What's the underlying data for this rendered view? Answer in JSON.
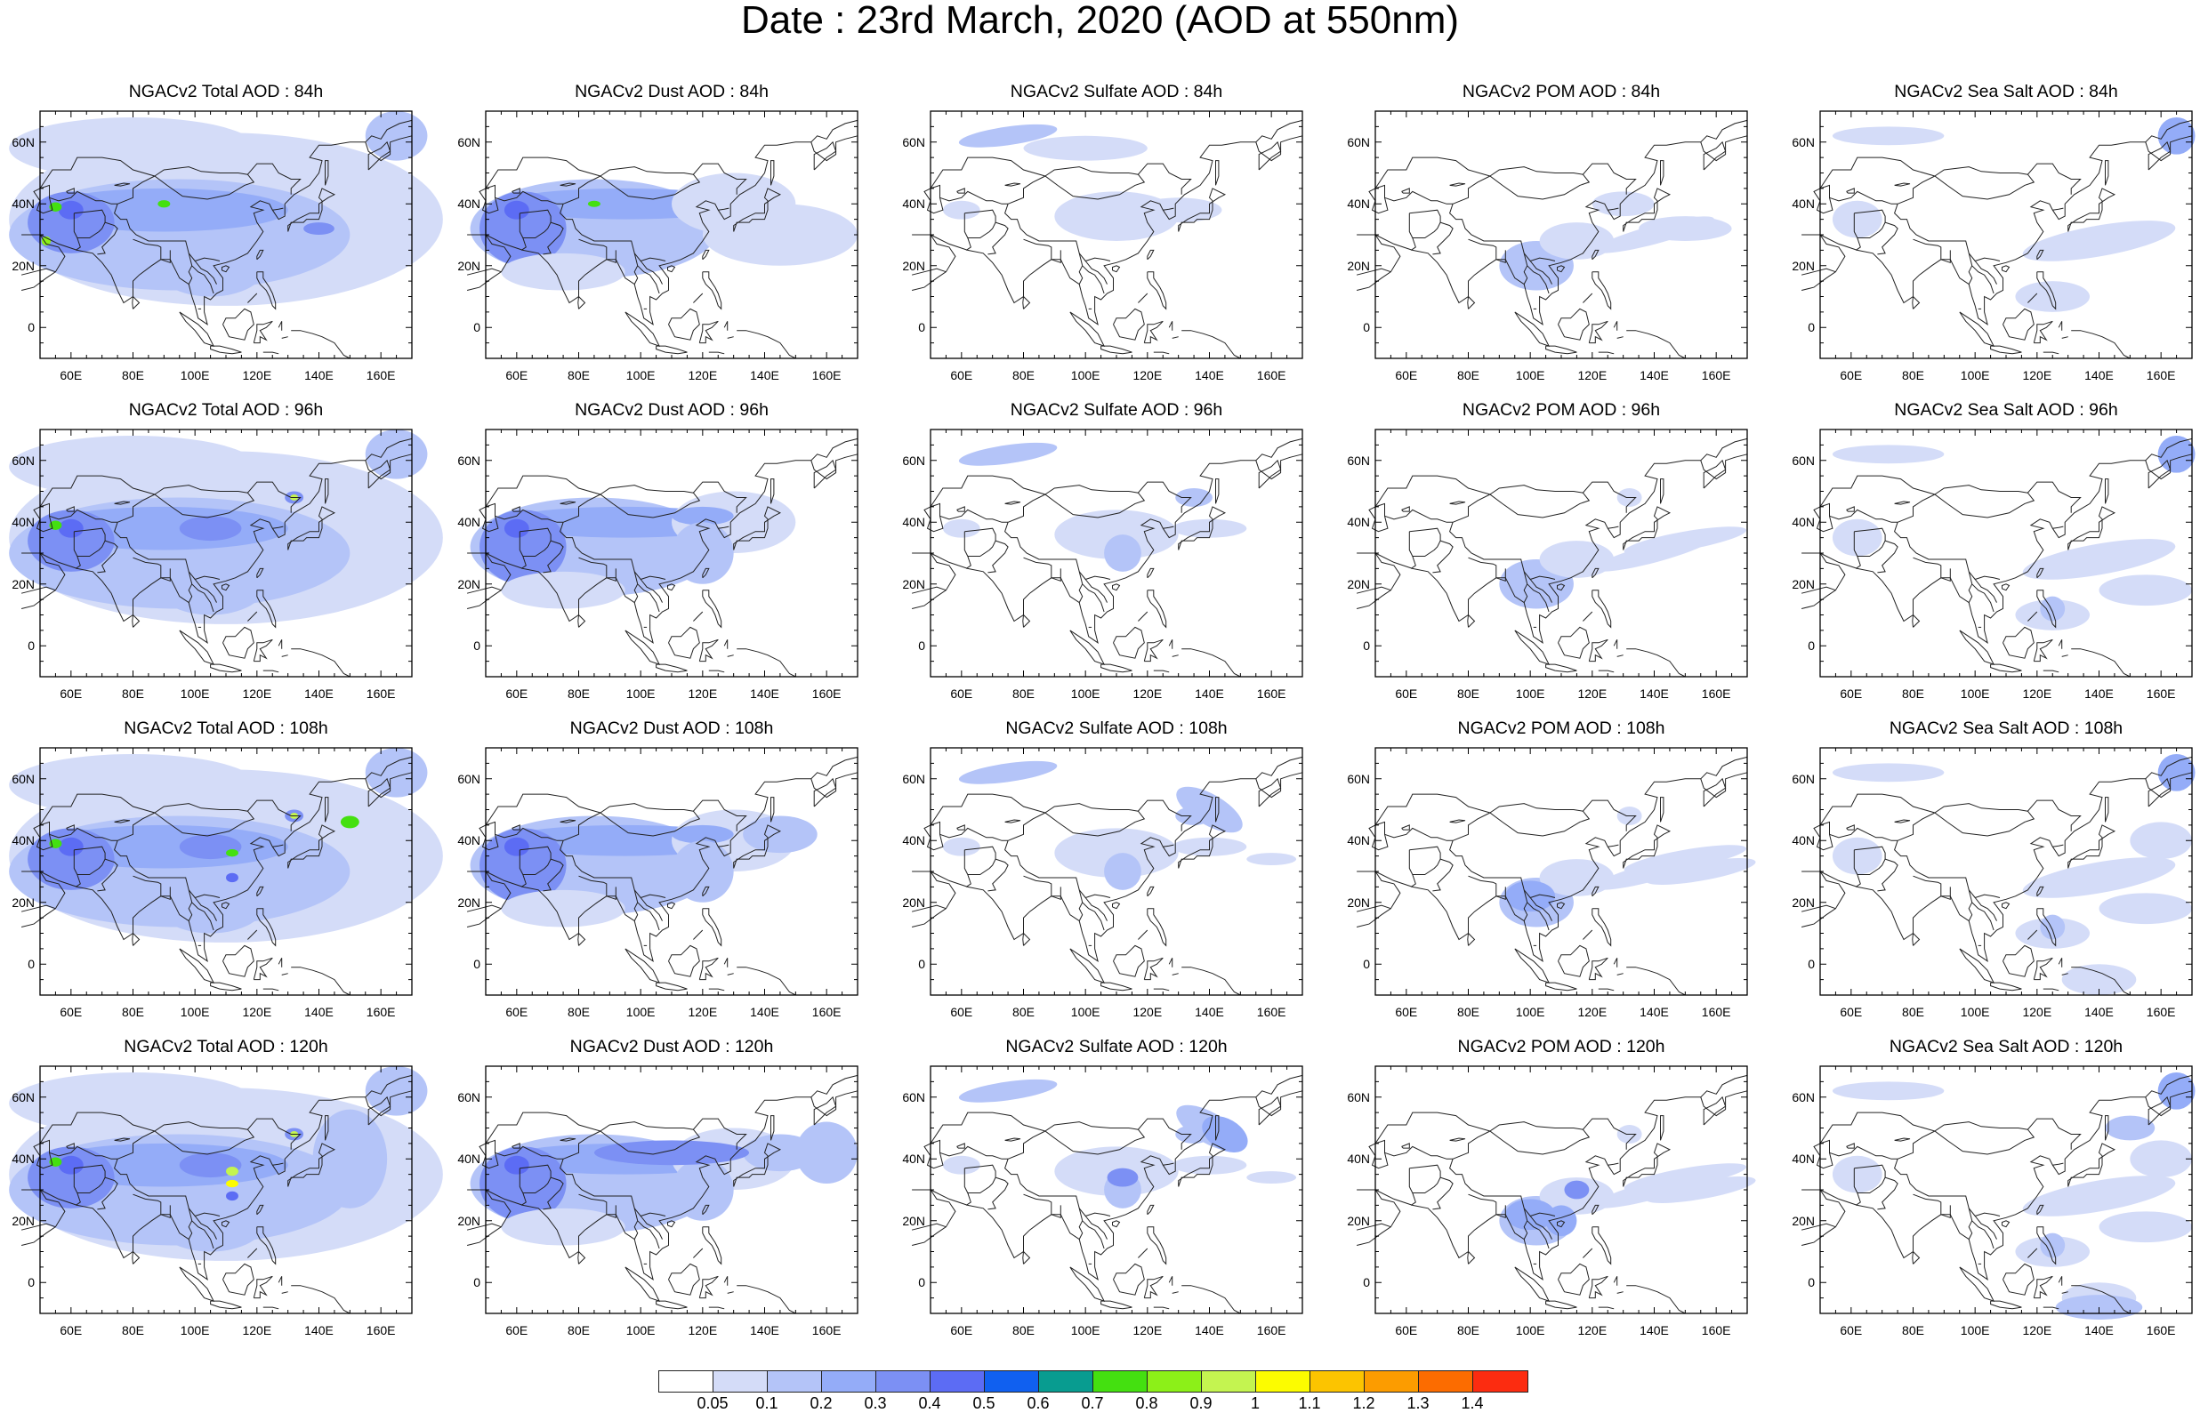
{
  "title": "Date : 23rd March, 2020 (AOD at 550nm)",
  "lat_ticks": [
    "60N",
    "40N",
    "20N",
    "0"
  ],
  "lon_ticks": [
    "60E",
    "80E",
    "100E",
    "120E",
    "140E",
    "160E"
  ],
  "panels": [
    {
      "title": "NGACv2 Total AOD : 84h",
      "species": "total",
      "forecast_hour": 84
    },
    {
      "title": "NGACv2 Dust AOD : 84h",
      "species": "dust",
      "forecast_hour": 84
    },
    {
      "title": "NGACv2 Sulfate AOD : 84h",
      "species": "sulfate",
      "forecast_hour": 84
    },
    {
      "title": "NGACv2 POM AOD : 84h",
      "species": "pom",
      "forecast_hour": 84
    },
    {
      "title": "NGACv2 Sea Salt AOD : 84h",
      "species": "seasalt",
      "forecast_hour": 84
    },
    {
      "title": "NGACv2 Total AOD : 96h",
      "species": "total",
      "forecast_hour": 96
    },
    {
      "title": "NGACv2 Dust AOD : 96h",
      "species": "dust",
      "forecast_hour": 96
    },
    {
      "title": "NGACv2 Sulfate AOD : 96h",
      "species": "sulfate",
      "forecast_hour": 96
    },
    {
      "title": "NGACv2 POM AOD : 96h",
      "species": "pom",
      "forecast_hour": 96
    },
    {
      "title": "NGACv2 Sea Salt AOD : 96h",
      "species": "seasalt",
      "forecast_hour": 96
    },
    {
      "title": "NGACv2 Total AOD : 108h",
      "species": "total",
      "forecast_hour": 108
    },
    {
      "title": "NGACv2 Dust AOD : 108h",
      "species": "dust",
      "forecast_hour": 108
    },
    {
      "title": "NGACv2 Sulfate AOD : 108h",
      "species": "sulfate",
      "forecast_hour": 108
    },
    {
      "title": "NGACv2 POM AOD : 108h",
      "species": "pom",
      "forecast_hour": 108
    },
    {
      "title": "NGACv2 Sea Salt AOD : 108h",
      "species": "seasalt",
      "forecast_hour": 108
    },
    {
      "title": "NGACv2 Total AOD : 120h",
      "species": "total",
      "forecast_hour": 120
    },
    {
      "title": "NGACv2 Dust AOD : 120h",
      "species": "dust",
      "forecast_hour": 120
    },
    {
      "title": "NGACv2 Sulfate AOD : 120h",
      "species": "sulfate",
      "forecast_hour": 120
    },
    {
      "title": "NGACv2 POM AOD : 120h",
      "species": "pom",
      "forecast_hour": 120
    },
    {
      "title": "NGACv2 Sea Salt  AOD : 120h",
      "species": "seasalt",
      "forecast_hour": 120
    }
  ],
  "colorbar": {
    "colors": [
      "#ffffff",
      "#d4dcf8",
      "#b4c4f8",
      "#94acf8",
      "#7c90f4",
      "#5c6cf4",
      "#1060f0",
      "#089c90",
      "#44e010",
      "#8cf018",
      "#c4f450",
      "#fcfc00",
      "#fcc400",
      "#fc9c00",
      "#fc6c00",
      "#fc2c10"
    ],
    "labels": [
      "0.05",
      "0.1",
      "0.2",
      "0.3",
      "0.4",
      "0.5",
      "0.6",
      "0.7",
      "0.8",
      "0.9",
      "1",
      "1.1",
      "1.2",
      "1.3",
      "1.4"
    ]
  }
}
